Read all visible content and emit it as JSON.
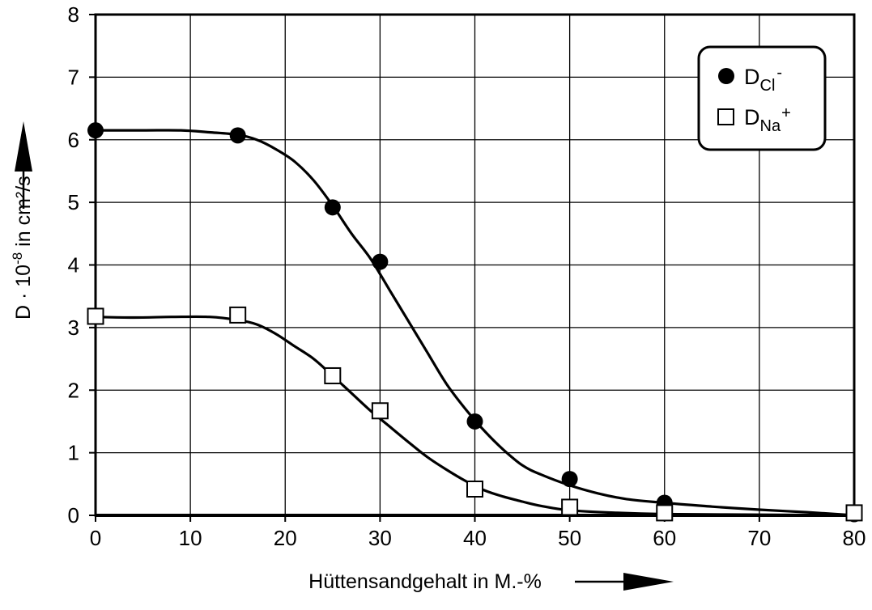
{
  "chart_data": {
    "type": "line",
    "xlabel": "Hüttensandgehalt in M.-%",
    "ylabel": {
      "prefix": "D · 10",
      "exponent": "-8",
      "suffix": " in cm²/s"
    },
    "xlim": [
      0,
      80
    ],
    "ylim": [
      0,
      8
    ],
    "x_ticks": [
      "0",
      "10",
      "20",
      "30",
      "40",
      "50",
      "60",
      "70",
      "80"
    ],
    "y_ticks": [
      "0",
      "1",
      "2",
      "3",
      "4",
      "5",
      "6",
      "7",
      "8"
    ],
    "grid": true,
    "legend_position": "top-right",
    "series": [
      {
        "name_main": "D",
        "name_sub": "Cl",
        "name_sup": "-",
        "marker": "filled-circle",
        "points": [
          [
            0,
            6.15
          ],
          [
            15,
            6.07
          ],
          [
            25,
            4.92
          ],
          [
            30,
            4.05
          ],
          [
            40,
            1.5
          ],
          [
            50,
            0.58
          ],
          [
            60,
            0.2
          ],
          [
            80,
            0.02
          ]
        ],
        "curve": [
          [
            0,
            6.15
          ],
          [
            5,
            6.15
          ],
          [
            9,
            6.15
          ],
          [
            12,
            6.12
          ],
          [
            15,
            6.08
          ],
          [
            17,
            6.0
          ],
          [
            19,
            5.85
          ],
          [
            21,
            5.65
          ],
          [
            23,
            5.35
          ],
          [
            25,
            4.95
          ],
          [
            27,
            4.5
          ],
          [
            29,
            4.1
          ],
          [
            31,
            3.6
          ],
          [
            33,
            3.1
          ],
          [
            35,
            2.6
          ],
          [
            37,
            2.1
          ],
          [
            39,
            1.7
          ],
          [
            41,
            1.35
          ],
          [
            43,
            1.05
          ],
          [
            45,
            0.8
          ],
          [
            47,
            0.65
          ],
          [
            50,
            0.48
          ],
          [
            53,
            0.35
          ],
          [
            56,
            0.26
          ],
          [
            60,
            0.2
          ],
          [
            65,
            0.14
          ],
          [
            70,
            0.09
          ],
          [
            75,
            0.05
          ],
          [
            80,
            0.0
          ]
        ]
      },
      {
        "name_main": "D",
        "name_sub": "Na",
        "name_sup": "+",
        "marker": "open-square",
        "points": [
          [
            0,
            3.18
          ],
          [
            15,
            3.2
          ],
          [
            25,
            2.23
          ],
          [
            30,
            1.67
          ],
          [
            40,
            0.42
          ],
          [
            50,
            0.13
          ],
          [
            60,
            0.04
          ],
          [
            80,
            0.04
          ]
        ],
        "curve": [
          [
            0,
            3.17
          ],
          [
            4,
            3.16
          ],
          [
            8,
            3.17
          ],
          [
            12,
            3.17
          ],
          [
            15,
            3.12
          ],
          [
            17,
            3.05
          ],
          [
            19,
            2.9
          ],
          [
            21,
            2.7
          ],
          [
            23,
            2.5
          ],
          [
            25,
            2.23
          ],
          [
            27,
            1.95
          ],
          [
            29,
            1.67
          ],
          [
            31,
            1.42
          ],
          [
            33,
            1.17
          ],
          [
            35,
            0.93
          ],
          [
            37,
            0.73
          ],
          [
            39,
            0.55
          ],
          [
            41,
            0.4
          ],
          [
            43,
            0.3
          ],
          [
            45,
            0.22
          ],
          [
            47,
            0.15
          ],
          [
            50,
            0.08
          ],
          [
            55,
            0.04
          ],
          [
            60,
            0.02
          ],
          [
            70,
            0.01
          ],
          [
            80,
            0.0
          ]
        ]
      }
    ]
  }
}
